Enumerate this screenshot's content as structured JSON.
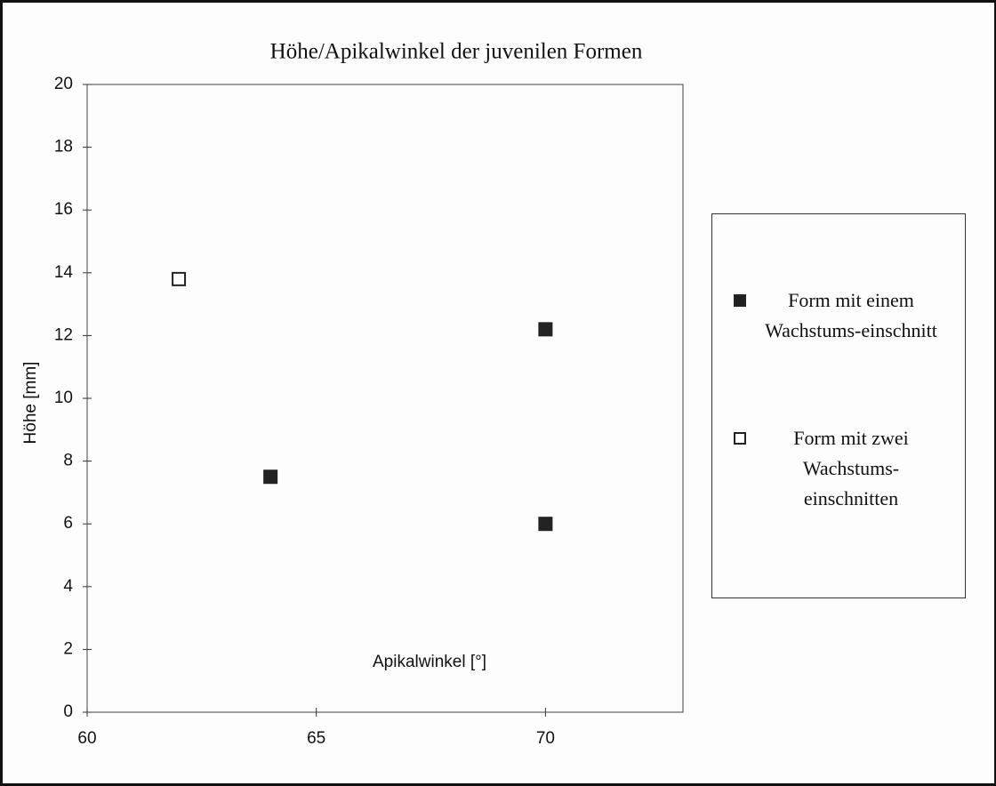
{
  "chart_data": {
    "type": "scatter",
    "title": "Höhe/Apikalwinkel der juvenilen Formen",
    "x_label": "Apikalwinkel [°]",
    "y_label": "Höhe [mm]",
    "xlim": [
      60,
      73
    ],
    "xticks": [
      60,
      65,
      70
    ],
    "ylim": [
      0,
      20
    ],
    "yticks": [
      0,
      2,
      4,
      6,
      8,
      10,
      12,
      14,
      16,
      18,
      20
    ],
    "legend": "right",
    "series": [
      {
        "name": "Form mit einem Wachstums-einschnitt",
        "color": "#222222",
        "filled": true,
        "x": [
          64,
          70,
          70
        ],
        "values": [
          7.5,
          12.2,
          6.0
        ]
      },
      {
        "name": "Form mit zwei Wachstums-einschnitten",
        "color": "#222222",
        "filled": false,
        "x": [
          62
        ],
        "values": [
          13.8
        ]
      }
    ]
  }
}
